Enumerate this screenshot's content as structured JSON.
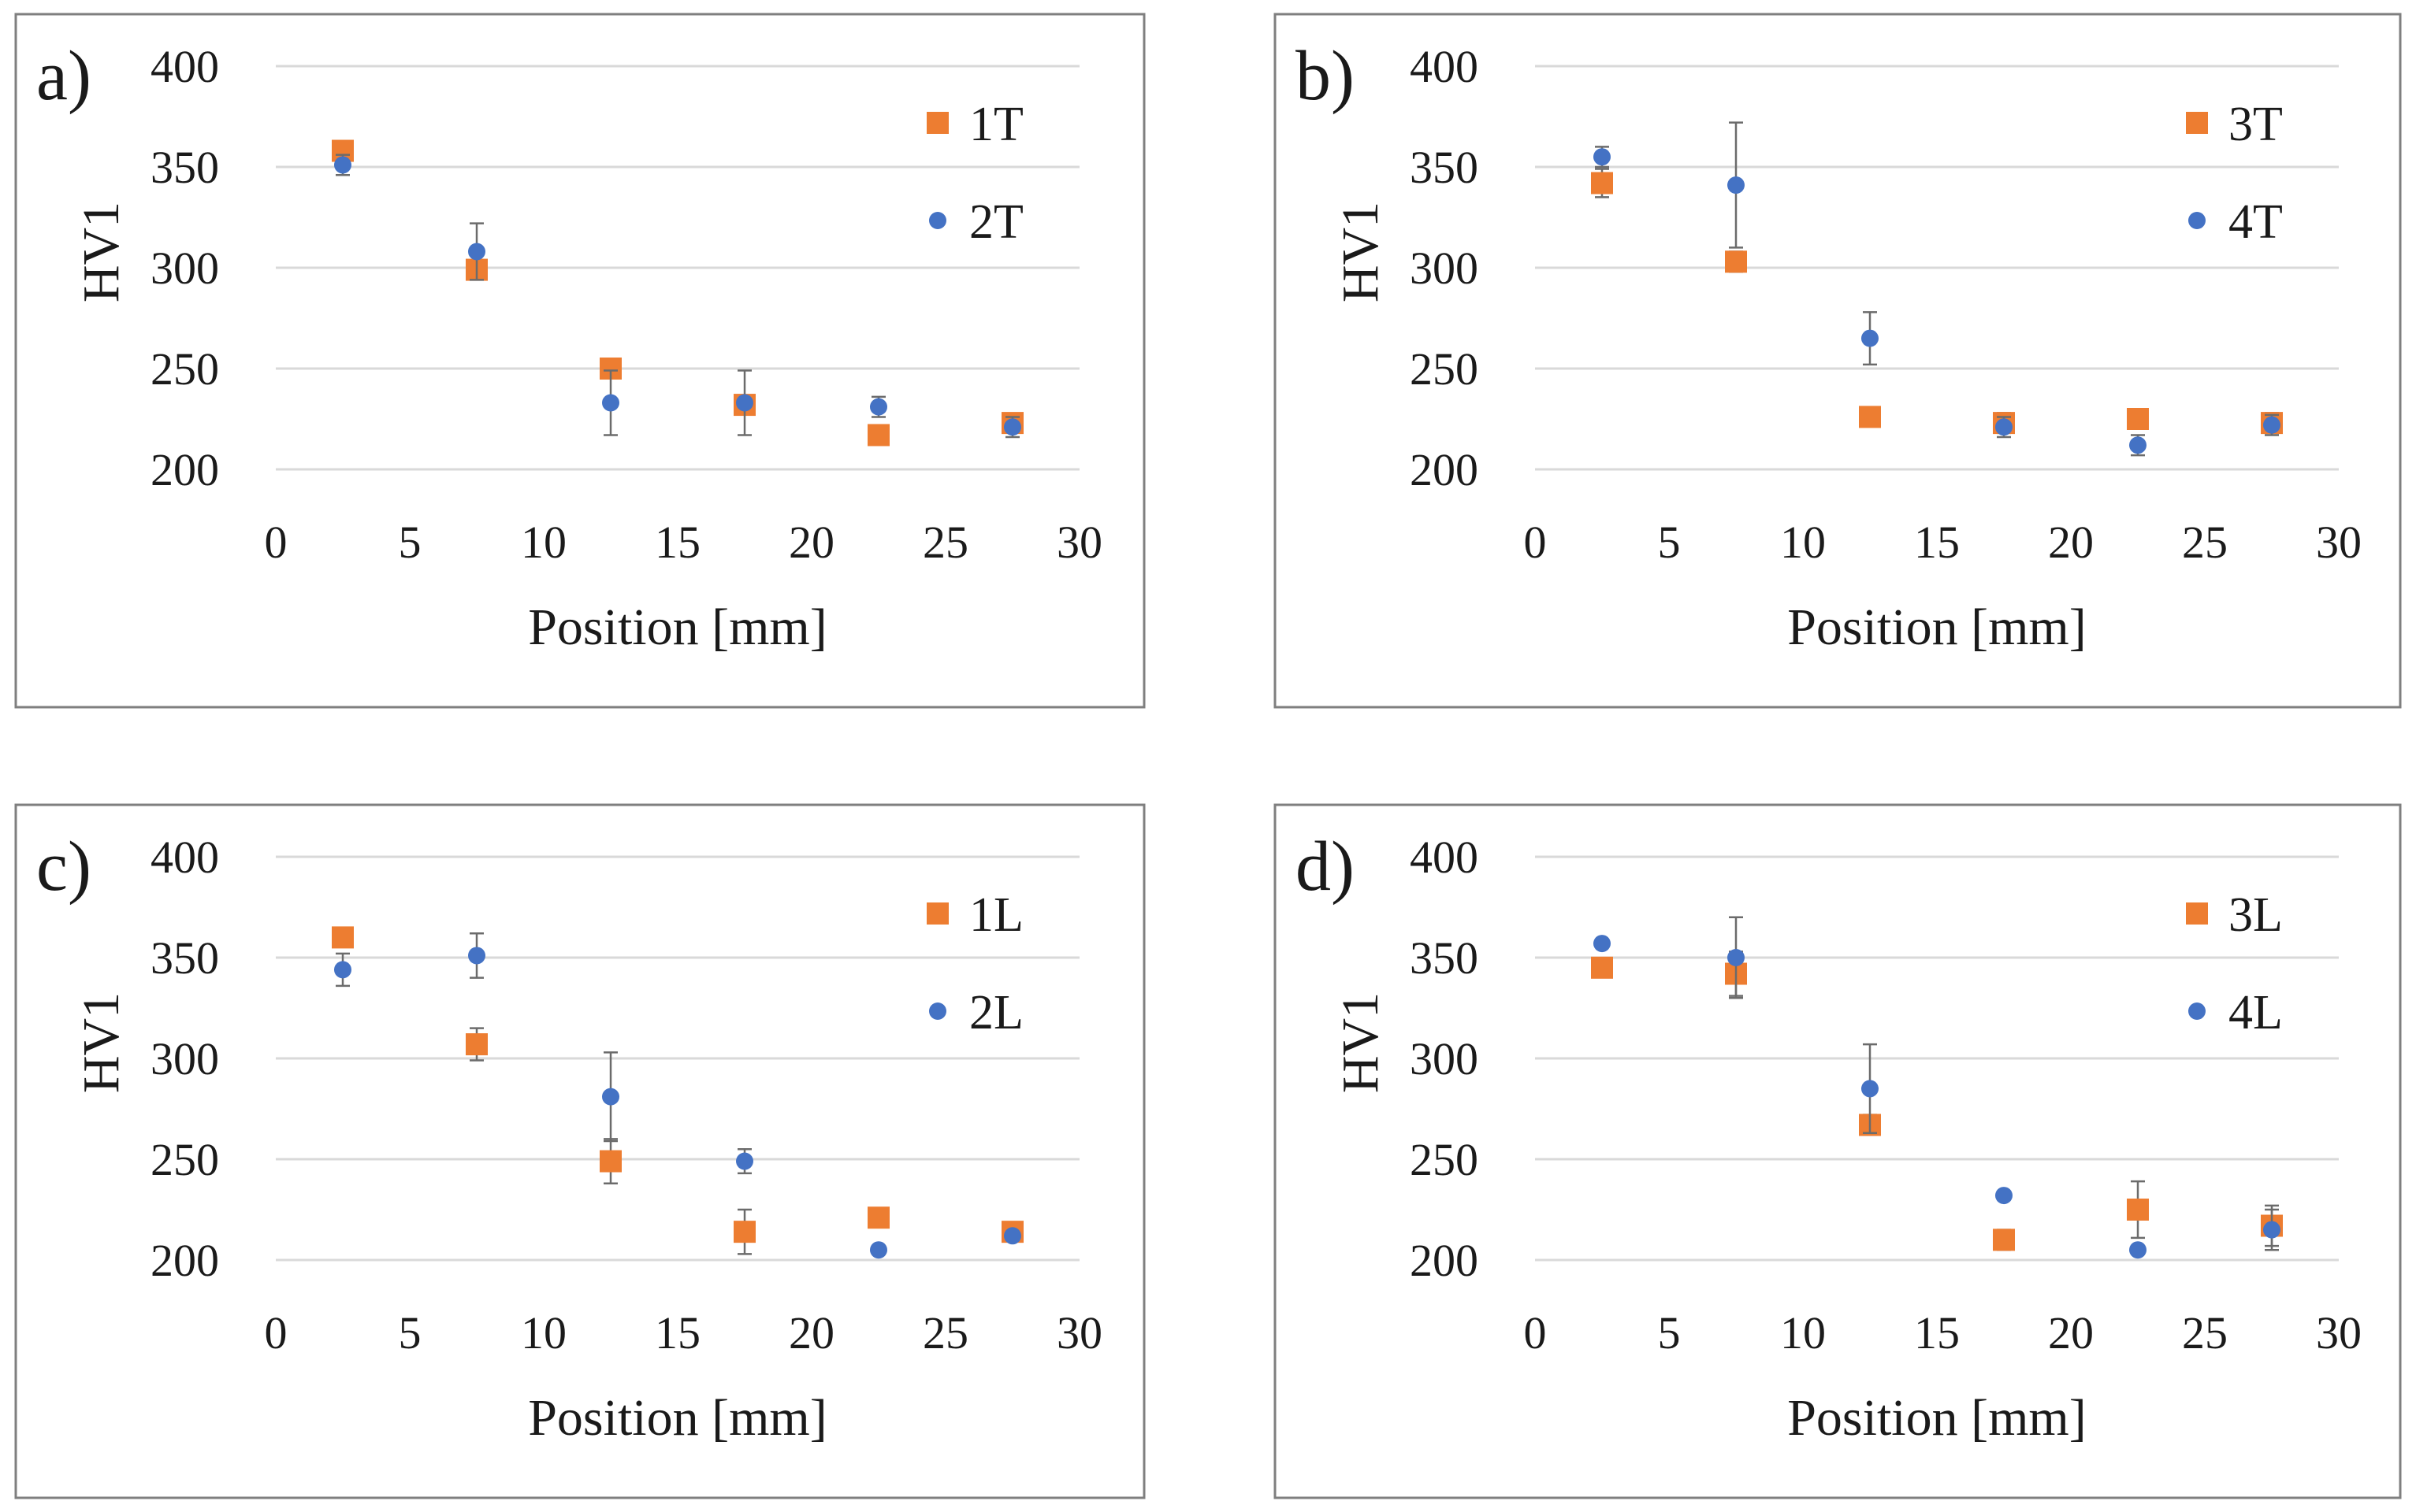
{
  "colors": {
    "orange": "#ED7D31",
    "blue": "#4472C4",
    "frame": "#7F7F7F",
    "grid": "#D9D9D9"
  },
  "chart_data": [
    {
      "type": "scatter",
      "panel_label": "a)",
      "xlabel": "Position [mm]",
      "ylabel": "HV1",
      "xlim": [
        0,
        30
      ],
      "ylim": [
        200,
        400
      ],
      "xticks": [
        0,
        5,
        10,
        15,
        20,
        25,
        30
      ],
      "yticks": [
        200,
        250,
        300,
        350,
        400
      ],
      "grid": "horizontal",
      "legend_position": "top-right",
      "series": [
        {
          "name": "1T",
          "marker": "square",
          "color": "#ED7D31",
          "x": [
            2.5,
            7.5,
            12.5,
            17.5,
            22.5,
            27.5
          ],
          "y": [
            358,
            299,
            250,
            232,
            217,
            223
          ],
          "err": [
            0,
            0,
            0,
            0,
            0,
            0
          ]
        },
        {
          "name": "2T",
          "marker": "circle",
          "color": "#4472C4",
          "x": [
            2.5,
            7.5,
            12.5,
            17.5,
            22.5,
            27.5
          ],
          "y": [
            351,
            308,
            233,
            233,
            231,
            221
          ],
          "err": [
            5,
            14,
            16,
            16,
            5,
            5
          ]
        }
      ]
    },
    {
      "type": "scatter",
      "panel_label": "b)",
      "xlabel": "Position [mm]",
      "ylabel": "HV1",
      "xlim": [
        0,
        30
      ],
      "ylim": [
        200,
        400
      ],
      "xticks": [
        0,
        5,
        10,
        15,
        20,
        25,
        30
      ],
      "yticks": [
        200,
        250,
        300,
        350,
        400
      ],
      "grid": "horizontal",
      "legend_position": "top-right",
      "series": [
        {
          "name": "3T",
          "marker": "square",
          "color": "#ED7D31",
          "x": [
            2.5,
            7.5,
            12.5,
            17.5,
            22.5,
            27.5
          ],
          "y": [
            342,
            303,
            226,
            223,
            225,
            223
          ],
          "err": [
            7,
            5,
            0,
            5,
            0,
            5
          ]
        },
        {
          "name": "4T",
          "marker": "circle",
          "color": "#4472C4",
          "x": [
            2.5,
            7.5,
            12.5,
            17.5,
            22.5,
            27.5
          ],
          "y": [
            355,
            341,
            265,
            221,
            212,
            222
          ],
          "err": [
            5,
            31,
            13,
            5,
            5,
            5
          ]
        }
      ]
    },
    {
      "type": "scatter",
      "panel_label": "c)",
      "xlabel": "Position [mm]",
      "ylabel": "HV1",
      "xlim": [
        0,
        30
      ],
      "ylim": [
        200,
        400
      ],
      "xticks": [
        0,
        5,
        10,
        15,
        20,
        25,
        30
      ],
      "yticks": [
        200,
        250,
        300,
        350,
        400
      ],
      "grid": "horizontal",
      "legend_position": "top-right",
      "series": [
        {
          "name": "1L",
          "marker": "square",
          "color": "#ED7D31",
          "x": [
            2.5,
            7.5,
            12.5,
            17.5,
            22.5,
            27.5
          ],
          "y": [
            360,
            307,
            249,
            214,
            221,
            214
          ],
          "err": [
            0,
            8,
            11,
            11,
            0,
            0
          ]
        },
        {
          "name": "2L",
          "marker": "circle",
          "color": "#4472C4",
          "x": [
            2.5,
            7.5,
            12.5,
            17.5,
            22.5,
            27.5
          ],
          "y": [
            344,
            351,
            281,
            249,
            205,
            212
          ],
          "err": [
            8,
            11,
            22,
            6,
            0,
            0
          ]
        }
      ]
    },
    {
      "type": "scatter",
      "panel_label": "d)",
      "xlabel": "Position [mm]",
      "ylabel": "HV1",
      "xlim": [
        0,
        30
      ],
      "ylim": [
        200,
        400
      ],
      "xticks": [
        0,
        5,
        10,
        15,
        20,
        25,
        30
      ],
      "yticks": [
        200,
        250,
        300,
        350,
        400
      ],
      "grid": "horizontal",
      "legend_position": "top-right",
      "series": [
        {
          "name": "3L",
          "marker": "square",
          "color": "#ED7D31",
          "x": [
            2.5,
            7.5,
            12.5,
            17.5,
            22.5,
            27.5
          ],
          "y": [
            345,
            342,
            267,
            210,
            225,
            217
          ],
          "err": [
            0,
            11,
            5,
            5,
            14,
            10
          ]
        },
        {
          "name": "4L",
          "marker": "circle",
          "color": "#4472C4",
          "x": [
            2.5,
            7.5,
            12.5,
            17.5,
            22.5,
            27.5
          ],
          "y": [
            357,
            350,
            285,
            232,
            205,
            215
          ],
          "err": [
            0,
            20,
            22,
            0,
            0,
            10
          ]
        }
      ]
    }
  ]
}
